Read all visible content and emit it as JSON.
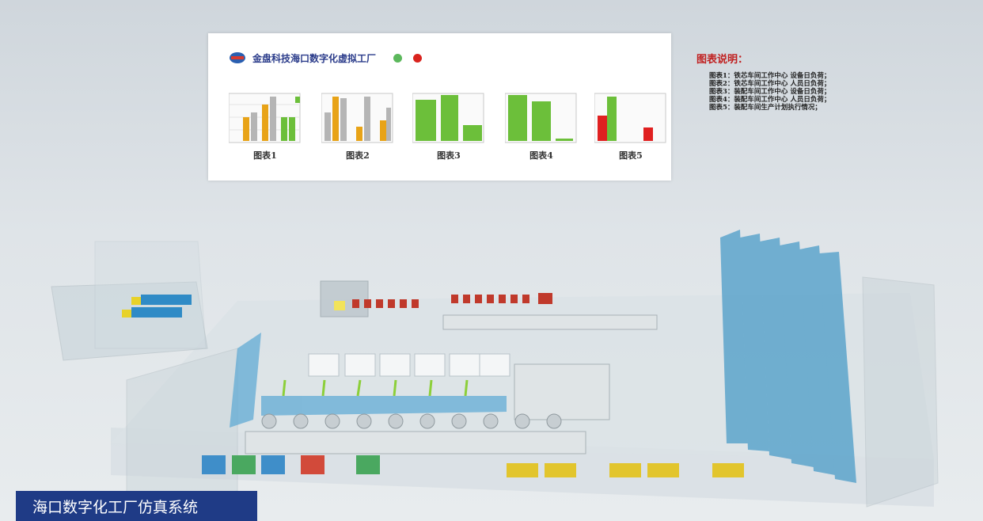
{
  "panel": {
    "title": "金盘科技海口数字化虚拟工厂",
    "status_green": "#5cb85c",
    "status_red": "#d9231e"
  },
  "charts": [
    {
      "label": "图表1"
    },
    {
      "label": "图表2"
    },
    {
      "label": "图表3"
    },
    {
      "label": "图表4"
    },
    {
      "label": "图表5"
    }
  ],
  "legend": {
    "title": "图表说明：",
    "items": [
      "图表1：铁芯车间工作中心 设备日负荷；",
      "图表2：铁芯车间工作中心 人员日负荷；",
      "图表3：装配车间工作中心 设备日负荷；",
      "图表4：装配车间工作中心 人员日负荷；",
      "图表5：装配车间生产计划执行情况；"
    ]
  },
  "footer": {
    "title": "海口数字化工厂仿真系统"
  },
  "colors": {
    "orange": "#e8a317",
    "gray": "#b5b5b5",
    "green": "#6cbf3a",
    "red": "#e02020",
    "title_bar": "#1f3b86",
    "legend_title": "#c02020"
  }
}
